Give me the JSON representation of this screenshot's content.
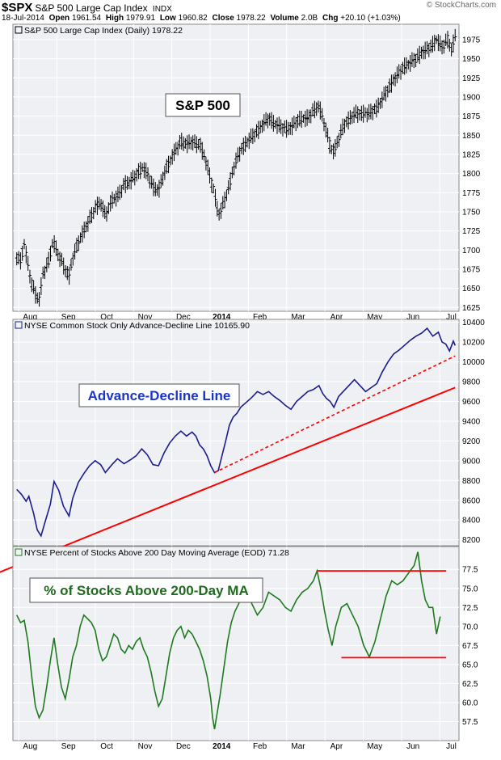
{
  "header": {
    "symbol": "$SPX",
    "name": "S&P 500 Large Cap Index",
    "exchange": "INDX",
    "date": "18-Jul-2014",
    "open_label": "Open",
    "open": "1961.54",
    "high_label": "High",
    "high": "1979.91",
    "low_label": "Low",
    "low": "1960.82",
    "close_label": "Close",
    "close": "1978.22",
    "volume_label": "Volume",
    "volume": "2.0B",
    "chg_label": "Chg",
    "chg": "+20.10 (+1.03%)",
    "brand": "© StockCharts.com"
  },
  "colors": {
    "panel_bg": "#eef0f3",
    "grid": "#ffffff",
    "border": "#8a8a8a",
    "price_bars": "#000000",
    "ad_line": "#1c1c8c",
    "pct_line": "#1f7a1f",
    "trend": "#ff0000",
    "label_blue": "#1a35c8",
    "label_green": "#1f6a1f",
    "label_black": "#000000"
  },
  "chart_data": [
    {
      "type": "ohlc",
      "title": "S&P 500 Large Cap Index (Daily) 1978.22",
      "annotation": "S&P 500",
      "x_ticks": [
        "Aug",
        "Sep",
        "Oct",
        "Nov",
        "Dec",
        "2014",
        "Feb",
        "Mar",
        "Apr",
        "May",
        "Jun",
        "Jul"
      ],
      "ylim": [
        1620,
        1995
      ],
      "y_ticks": [
        1625,
        1650,
        1675,
        1700,
        1725,
        1750,
        1775,
        1800,
        1825,
        1850,
        1875,
        1900,
        1925,
        1950,
        1975
      ],
      "series_points": [
        [
          0,
          1692
        ],
        [
          0.04,
          1685
        ],
        [
          0.08,
          1708
        ],
        [
          0.1,
          1695
        ],
        [
          0.15,
          1660
        ],
        [
          0.2,
          1642
        ],
        [
          0.24,
          1635
        ],
        [
          0.28,
          1668
        ],
        [
          0.34,
          1685
        ],
        [
          0.39,
          1712
        ],
        [
          0.44,
          1695
        ],
        [
          0.5,
          1680
        ],
        [
          0.56,
          1665
        ],
        [
          0.6,
          1690
        ],
        [
          0.66,
          1710
        ],
        [
          0.72,
          1725
        ],
        [
          0.78,
          1740
        ],
        [
          0.84,
          1755
        ],
        [
          0.9,
          1762
        ],
        [
          0.95,
          1745
        ],
        [
          1.02,
          1765
        ],
        [
          1.08,
          1770
        ],
        [
          1.15,
          1785
        ],
        [
          1.22,
          1790
        ],
        [
          1.28,
          1798
        ],
        [
          1.35,
          1808
        ],
        [
          1.4,
          1800
        ],
        [
          1.46,
          1782
        ],
        [
          1.52,
          1778
        ],
        [
          1.58,
          1800
        ],
        [
          1.64,
          1816
        ],
        [
          1.7,
          1830
        ],
        [
          1.76,
          1842
        ],
        [
          1.82,
          1838
        ],
        [
          1.88,
          1842
        ],
        [
          1.92,
          1838
        ],
        [
          1.96,
          1840
        ],
        [
          2.0,
          1825
        ],
        [
          2.04,
          1812
        ],
        [
          2.08,
          1790
        ],
        [
          2.12,
          1775
        ],
        [
          2.16,
          1745
        ],
        [
          2.2,
          1755
        ],
        [
          2.24,
          1770
        ],
        [
          2.28,
          1785
        ],
        [
          2.32,
          1805
        ],
        [
          2.36,
          1820
        ],
        [
          2.4,
          1830
        ],
        [
          2.46,
          1840
        ],
        [
          2.52,
          1848
        ],
        [
          2.58,
          1855
        ],
        [
          2.64,
          1865
        ],
        [
          2.7,
          1872
        ],
        [
          2.76,
          1865
        ],
        [
          2.82,
          1862
        ],
        [
          2.88,
          1858
        ],
        [
          2.94,
          1860
        ],
        [
          3.0,
          1868
        ],
        [
          3.06,
          1872
        ],
        [
          3.12,
          1872
        ],
        [
          3.18,
          1882
        ],
        [
          3.24,
          1888
        ],
        [
          3.28,
          1872
        ],
        [
          3.32,
          1855
        ],
        [
          3.36,
          1835
        ],
        [
          3.4,
          1828
        ],
        [
          3.45,
          1845
        ],
        [
          3.5,
          1862
        ],
        [
          3.56,
          1870
        ],
        [
          3.62,
          1878
        ],
        [
          3.68,
          1878
        ],
        [
          3.74,
          1878
        ],
        [
          3.8,
          1880
        ],
        [
          3.86,
          1885
        ],
        [
          3.92,
          1898
        ],
        [
          3.98,
          1910
        ],
        [
          4.04,
          1922
        ],
        [
          4.1,
          1932
        ],
        [
          4.16,
          1940
        ],
        [
          4.22,
          1945
        ],
        [
          4.28,
          1950
        ],
        [
          4.34,
          1958
        ],
        [
          4.4,
          1962
        ],
        [
          4.46,
          1968
        ],
        [
          4.5,
          1975
        ],
        [
          4.56,
          1965
        ],
        [
          4.62,
          1975
        ],
        [
          4.66,
          1962
        ],
        [
          4.7,
          1978
        ]
      ]
    },
    {
      "type": "line",
      "title": "NYSE Common Stock Only Advance-Decline Line 10165.90",
      "annotation": "Advance-Decline Line",
      "x_ticks": [],
      "ylim": [
        8140,
        10430
      ],
      "y_ticks": [
        8200,
        8400,
        8600,
        8800,
        9000,
        9200,
        9400,
        9600,
        9800,
        10000,
        10200,
        10400
      ],
      "series_points": [
        [
          0,
          8710
        ],
        [
          0.05,
          8660
        ],
        [
          0.1,
          8590
        ],
        [
          0.13,
          8640
        ],
        [
          0.18,
          8470
        ],
        [
          0.22,
          8300
        ],
        [
          0.26,
          8240
        ],
        [
          0.3,
          8370
        ],
        [
          0.36,
          8560
        ],
        [
          0.4,
          8790
        ],
        [
          0.45,
          8700
        ],
        [
          0.5,
          8540
        ],
        [
          0.56,
          8440
        ],
        [
          0.6,
          8620
        ],
        [
          0.66,
          8780
        ],
        [
          0.72,
          8870
        ],
        [
          0.78,
          8950
        ],
        [
          0.84,
          9000
        ],
        [
          0.9,
          8960
        ],
        [
          0.95,
          8880
        ],
        [
          1.02,
          8960
        ],
        [
          1.08,
          9020
        ],
        [
          1.15,
          8970
        ],
        [
          1.22,
          9010
        ],
        [
          1.28,
          9050
        ],
        [
          1.34,
          9120
        ],
        [
          1.4,
          9060
        ],
        [
          1.46,
          8960
        ],
        [
          1.52,
          8950
        ],
        [
          1.58,
          9080
        ],
        [
          1.64,
          9180
        ],
        [
          1.7,
          9250
        ],
        [
          1.76,
          9300
        ],
        [
          1.82,
          9250
        ],
        [
          1.88,
          9290
        ],
        [
          1.92,
          9250
        ],
        [
          1.96,
          9160
        ],
        [
          2.0,
          9120
        ],
        [
          2.04,
          9050
        ],
        [
          2.08,
          8950
        ],
        [
          2.12,
          8880
        ],
        [
          2.16,
          8900
        ],
        [
          2.2,
          9050
        ],
        [
          2.24,
          9200
        ],
        [
          2.28,
          9360
        ],
        [
          2.32,
          9440
        ],
        [
          2.36,
          9480
        ],
        [
          2.4,
          9540
        ],
        [
          2.46,
          9590
        ],
        [
          2.52,
          9640
        ],
        [
          2.58,
          9700
        ],
        [
          2.64,
          9670
        ],
        [
          2.7,
          9700
        ],
        [
          2.76,
          9650
        ],
        [
          2.82,
          9610
        ],
        [
          2.88,
          9560
        ],
        [
          2.94,
          9520
        ],
        [
          3.0,
          9600
        ],
        [
          3.06,
          9650
        ],
        [
          3.12,
          9700
        ],
        [
          3.18,
          9720
        ],
        [
          3.24,
          9760
        ],
        [
          3.28,
          9680
        ],
        [
          3.32,
          9630
        ],
        [
          3.36,
          9600
        ],
        [
          3.4,
          9540
        ],
        [
          3.45,
          9650
        ],
        [
          3.5,
          9700
        ],
        [
          3.56,
          9760
        ],
        [
          3.62,
          9820
        ],
        [
          3.68,
          9760
        ],
        [
          3.74,
          9700
        ],
        [
          3.8,
          9740
        ],
        [
          3.86,
          9780
        ],
        [
          3.92,
          9900
        ],
        [
          3.98,
          10000
        ],
        [
          4.04,
          10080
        ],
        [
          4.1,
          10120
        ],
        [
          4.16,
          10170
        ],
        [
          4.22,
          10220
        ],
        [
          4.28,
          10260
        ],
        [
          4.34,
          10290
        ],
        [
          4.4,
          10340
        ],
        [
          4.46,
          10260
        ],
        [
          4.52,
          10300
        ],
        [
          4.56,
          10200
        ],
        [
          4.6,
          10180
        ],
        [
          4.64,
          10110
        ],
        [
          4.68,
          10210
        ],
        [
          4.7,
          10166
        ]
      ],
      "trendlines": [
        {
          "style": "solid",
          "points": [
            [
              -1.0,
              7560
            ],
            [
              4.7,
              9740
            ]
          ]
        },
        {
          "style": "dashed",
          "points": [
            [
              2.12,
              8880
            ],
            [
              4.7,
              10060
            ]
          ]
        }
      ]
    },
    {
      "type": "line",
      "title": "NYSE Percent of Stocks Above 200 Day Moving Average (EOD) 71.28",
      "annotation": "% of Stocks Above 200-Day MA",
      "x_ticks": [
        "Aug",
        "Sep",
        "Oct",
        "Nov",
        "Dec",
        "2014",
        "Feb",
        "Mar",
        "Apr",
        "May",
        "Jun",
        "Jul"
      ],
      "ylim": [
        55.0,
        80.5
      ],
      "y_ticks": [
        57.5,
        60.0,
        62.5,
        65.0,
        67.5,
        70.0,
        72.5,
        75.0,
        77.5
      ],
      "series_points": [
        [
          0,
          71.5
        ],
        [
          0.04,
          70.5
        ],
        [
          0.08,
          70.8
        ],
        [
          0.12,
          68.0
        ],
        [
          0.16,
          63.5
        ],
        [
          0.2,
          59.5
        ],
        [
          0.24,
          58.0
        ],
        [
          0.28,
          59.0
        ],
        [
          0.32,
          62.0
        ],
        [
          0.36,
          65.5
        ],
        [
          0.4,
          68.5
        ],
        [
          0.44,
          65.0
        ],
        [
          0.48,
          62.0
        ],
        [
          0.52,
          60.5
        ],
        [
          0.56,
          63.0
        ],
        [
          0.6,
          66.0
        ],
        [
          0.64,
          67.5
        ],
        [
          0.68,
          70.0
        ],
        [
          0.72,
          71.5
        ],
        [
          0.76,
          71.0
        ],
        [
          0.8,
          70.5
        ],
        [
          0.84,
          69.5
        ],
        [
          0.88,
          67.0
        ],
        [
          0.92,
          65.5
        ],
        [
          0.96,
          66.0
        ],
        [
          1.0,
          67.5
        ],
        [
          1.04,
          69.0
        ],
        [
          1.08,
          68.5
        ],
        [
          1.12,
          67.0
        ],
        [
          1.16,
          66.5
        ],
        [
          1.2,
          67.5
        ],
        [
          1.24,
          67.0
        ],
        [
          1.28,
          68.0
        ],
        [
          1.32,
          68.5
        ],
        [
          1.36,
          67.0
        ],
        [
          1.4,
          66.0
        ],
        [
          1.44,
          64.0
        ],
        [
          1.48,
          61.5
        ],
        [
          1.52,
          59.5
        ],
        [
          1.56,
          60.5
        ],
        [
          1.6,
          63.5
        ],
        [
          1.64,
          66.5
        ],
        [
          1.68,
          68.5
        ],
        [
          1.72,
          69.5
        ],
        [
          1.76,
          70.0
        ],
        [
          1.8,
          68.5
        ],
        [
          1.84,
          69.5
        ],
        [
          1.88,
          69.0
        ],
        [
          1.92,
          68.0
        ],
        [
          1.96,
          67.0
        ],
        [
          2.0,
          65.5
        ],
        [
          2.04,
          63.5
        ],
        [
          2.08,
          60.5
        ],
        [
          2.1,
          58.0
        ],
        [
          2.12,
          56.5
        ],
        [
          2.14,
          58.0
        ],
        [
          2.18,
          61.0
        ],
        [
          2.22,
          64.5
        ],
        [
          2.26,
          68.0
        ],
        [
          2.3,
          70.5
        ],
        [
          2.34,
          72.0
        ],
        [
          2.38,
          73.0
        ],
        [
          2.42,
          74.5
        ],
        [
          2.46,
          75.5
        ],
        [
          2.52,
          73.0
        ],
        [
          2.58,
          71.5
        ],
        [
          2.64,
          72.5
        ],
        [
          2.7,
          74.5
        ],
        [
          2.76,
          74.0
        ],
        [
          2.82,
          73.5
        ],
        [
          2.88,
          72.5
        ],
        [
          2.94,
          72.0
        ],
        [
          3.0,
          73.5
        ],
        [
          3.06,
          74.5
        ],
        [
          3.12,
          75.0
        ],
        [
          3.18,
          76.0
        ],
        [
          3.22,
          77.3
        ],
        [
          3.26,
          75.0
        ],
        [
          3.3,
          72.0
        ],
        [
          3.34,
          69.5
        ],
        [
          3.38,
          67.5
        ],
        [
          3.42,
          70.0
        ],
        [
          3.48,
          72.5
        ],
        [
          3.54,
          73.0
        ],
        [
          3.6,
          71.5
        ],
        [
          3.66,
          70.0
        ],
        [
          3.72,
          67.5
        ],
        [
          3.78,
          66.0
        ],
        [
          3.84,
          68.0
        ],
        [
          3.9,
          71.0
        ],
        [
          3.96,
          74.0
        ],
        [
          4.02,
          76.0
        ],
        [
          4.08,
          75.5
        ],
        [
          4.14,
          76.0
        ],
        [
          4.2,
          77.0
        ],
        [
          4.26,
          78.0
        ],
        [
          4.3,
          79.8
        ],
        [
          4.34,
          76.0
        ],
        [
          4.38,
          73.5
        ],
        [
          4.42,
          72.5
        ],
        [
          4.46,
          72.5
        ],
        [
          4.5,
          69.0
        ],
        [
          4.54,
          71.3
        ]
      ],
      "hlines": [
        {
          "y": 77.3,
          "from": 3.22,
          "to": 4.5
        },
        {
          "y": 65.9,
          "from": 3.48,
          "to": 4.5
        }
      ]
    }
  ]
}
